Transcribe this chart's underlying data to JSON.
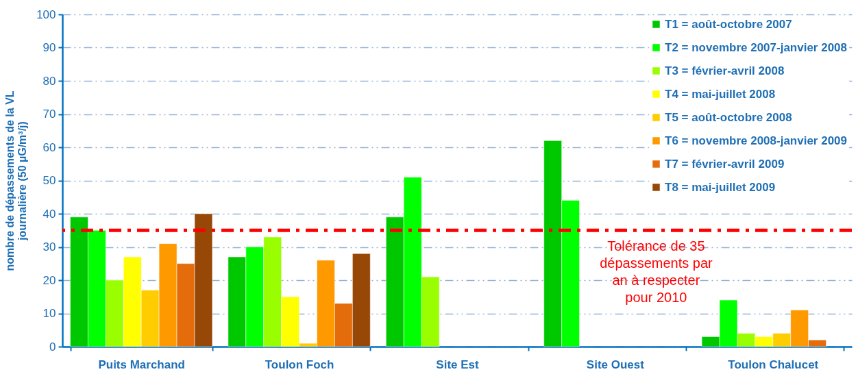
{
  "chart_data": {
    "type": "bar",
    "ylabel": "nombre de dépassements de la VL journalière (50 µG/m³/j)",
    "categories": [
      "Puits Marchand",
      "Toulon Foch",
      "Site Est",
      "Site Ouest",
      "Toulon Chalucet"
    ],
    "series": [
      {
        "name": "T1 = août-octobre  2007",
        "color": "#00c800",
        "values": [
          39,
          27,
          39,
          62,
          3
        ]
      },
      {
        "name": "T2 = novembre 2007-janvier 2008",
        "color": "#00ff00",
        "values": [
          35,
          30,
          51,
          44,
          14
        ]
      },
      {
        "name": "T3 = février-avril 2008",
        "color": "#99ff00",
        "values": [
          20,
          33,
          21,
          null,
          4
        ]
      },
      {
        "name": "T4 = mai-juillet  2008",
        "color": "#ffff00",
        "values": [
          27,
          15,
          null,
          null,
          3
        ]
      },
      {
        "name": "T5 = août-octobre  2008",
        "color": "#ffcc00",
        "values": [
          17,
          1,
          null,
          null,
          4
        ]
      },
      {
        "name": "T6 = novembre 2008-janvier 2009",
        "color": "#ff9900",
        "values": [
          31,
          26,
          null,
          null,
          11
        ]
      },
      {
        "name": "T7 = février-avril 2009",
        "color": "#e46c0a",
        "values": [
          25,
          13,
          null,
          null,
          2
        ]
      },
      {
        "name": "T8 = mai-juillet  2009",
        "color": "#974706",
        "values": [
          40,
          28,
          null,
          null,
          null
        ]
      }
    ],
    "ylim": [
      0,
      100
    ],
    "yticks": [
      0,
      10,
      20,
      30,
      40,
      50,
      60,
      70,
      80,
      90,
      100
    ],
    "grid": "y",
    "legend": "top right",
    "ref_lines": [
      {
        "axis": "y",
        "value": 35,
        "label": "Tolérance de 35 dépassements par an à respecter pour 2010",
        "color": "#ff0000",
        "line_style": "dashdot"
      }
    ]
  }
}
